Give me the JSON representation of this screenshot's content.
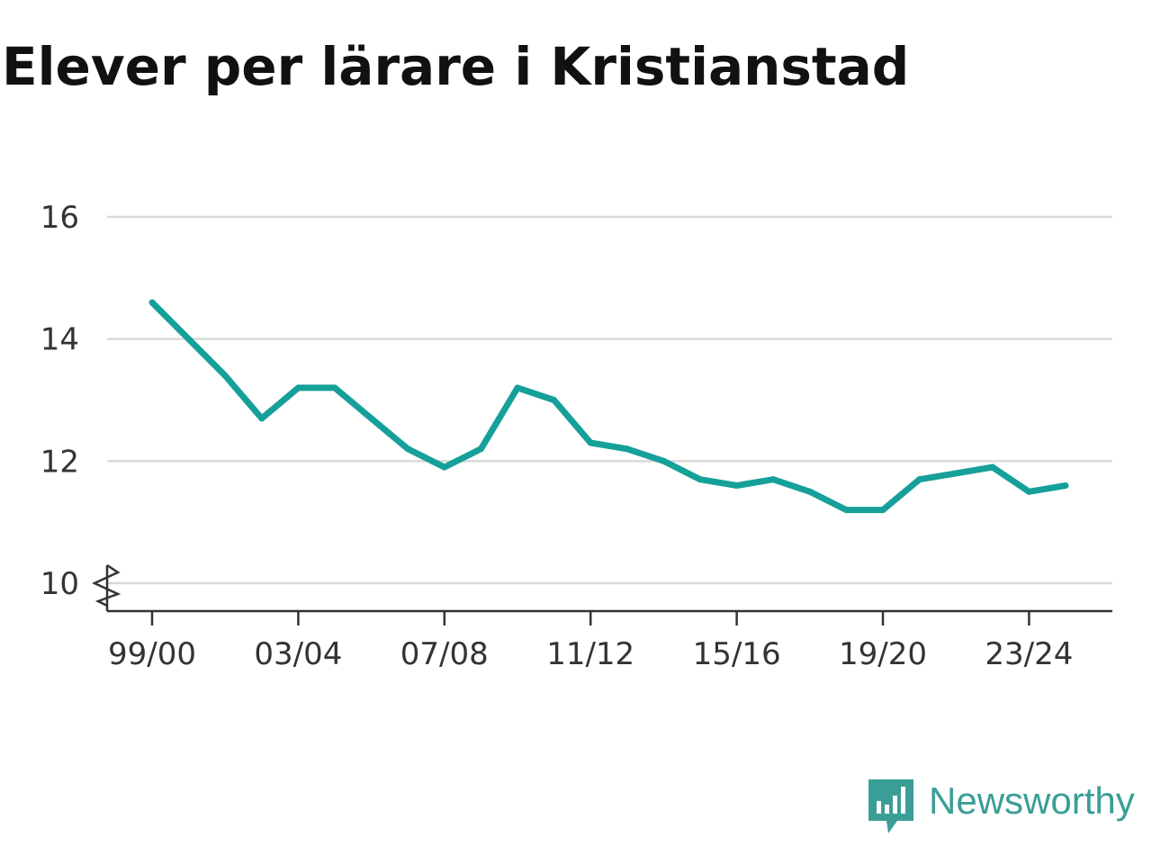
{
  "chart_data": {
    "type": "line",
    "title": "Elever per lärare i Kristianstad",
    "xlabel": "",
    "ylabel": "",
    "x_tick_labels": [
      "99/00",
      "03/04",
      "07/08",
      "11/12",
      "15/16",
      "19/20",
      "23/24"
    ],
    "y_tick_labels": [
      "10",
      "12",
      "14",
      "16"
    ],
    "y_ticks": [
      10,
      12,
      14,
      16
    ],
    "ylim": [
      10,
      16
    ],
    "y_axis_break": true,
    "grid": true,
    "legend": "none",
    "series": [
      {
        "x": [
          "99/00",
          "00/01",
          "01/02",
          "02/03",
          "03/04",
          "04/05",
          "05/06",
          "06/07",
          "07/08",
          "08/09",
          "09/10",
          "10/11",
          "11/12",
          "12/13",
          "13/14",
          "14/15",
          "15/16",
          "16/17",
          "17/18",
          "18/19",
          "19/20",
          "20/21",
          "21/22",
          "22/23",
          "23/24",
          "24/25"
        ],
        "values": [
          14.6,
          14.0,
          13.4,
          12.7,
          13.2,
          13.2,
          12.7,
          12.2,
          11.9,
          12.2,
          13.2,
          13.0,
          12.3,
          12.2,
          12.0,
          11.7,
          11.6,
          11.7,
          11.5,
          11.2,
          11.2,
          11.7,
          11.8,
          11.9,
          11.5,
          11.6
        ],
        "color": "#16a09a"
      }
    ]
  },
  "colors": {
    "line": "#16a09a",
    "grid": "#d9d9d9",
    "axis": "#333333",
    "brand": "#3a9e96"
  },
  "brand": {
    "name": "Newsworthy",
    "icon": "newsworthy-logo-icon"
  }
}
